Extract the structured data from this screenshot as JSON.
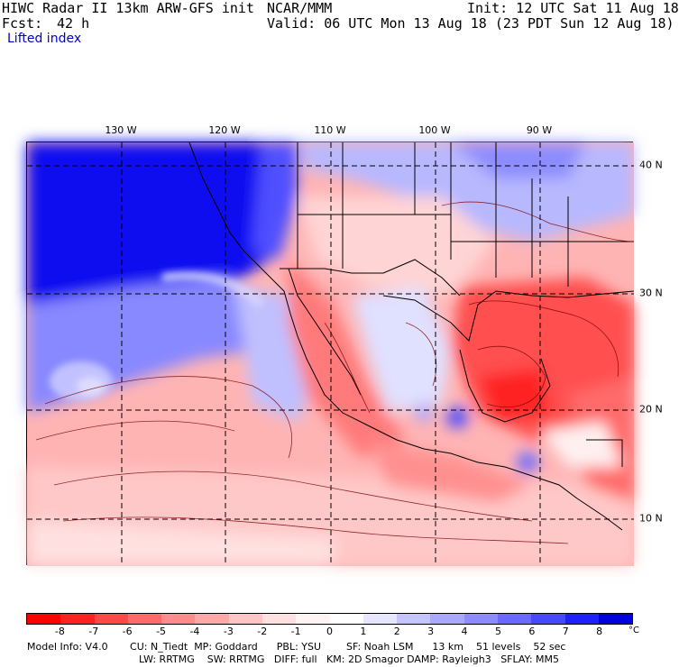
{
  "header": {
    "model_title": "HIWC Radar II 13km ARW-GFS init",
    "institution": "NCAR/MMM",
    "init_time": "Init: 12 UTC Sat 11 Aug 18",
    "forecast_label": "Fcst:",
    "forecast_hours": "42 h",
    "valid_time": "Valid: 06 UTC Mon 13 Aug 18 (23 PDT Sun 12 Aug 18)",
    "field_name": "Lifted index"
  },
  "map": {
    "longitude_labels": [
      "130 W",
      "120 W",
      "110 W",
      "100 W",
      "90 W"
    ],
    "latitude_labels": [
      "40 N",
      "30 N",
      "20 N",
      "10 N"
    ]
  },
  "colorbar": {
    "unit": "°C",
    "tick_labels": [
      "-8",
      "-7",
      "-6",
      "-5",
      "-4",
      "-3",
      "-2",
      "-1",
      "0",
      "1",
      "2",
      "3",
      "4",
      "5",
      "6",
      "7",
      "8"
    ],
    "colors": [
      "#ff0000",
      "#ff2020",
      "#ff4848",
      "#ff6a6a",
      "#ff8c8c",
      "#ffa8a8",
      "#ffc4c4",
      "#ffe0e0",
      "#fff4f4",
      "#ffffff",
      "#e6e6ff",
      "#c4c4ff",
      "#a8a8ff",
      "#8c8cff",
      "#6a6aff",
      "#4848ff",
      "#2020ff",
      "#0000e0"
    ]
  },
  "footer": {
    "line1": "Model Info: V4.0       CU: N_Tiedt  MP: Goddard      PBL: YSU        SF: Noah LSM      13 km    51 levels    52 sec",
    "line2": "LW: RRTMG    SW: RRTMG   DIFF: full   KM: 2D Smagor DAMP: Rayleigh3   SFLAY: MM5"
  },
  "colors": {
    "stable_blue": "#0000e0",
    "unstable_red": "#ff2020",
    "neutral": "#ffffff"
  }
}
